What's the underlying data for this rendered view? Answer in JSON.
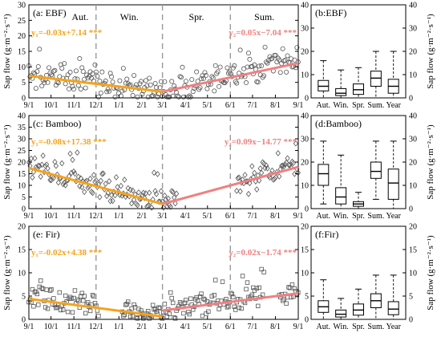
{
  "colors": {
    "fit1": "#F5A31A",
    "fit2": "#F08080",
    "marker": "#555555",
    "divider": "#9a9a9a"
  },
  "seasons": [
    "Aut.",
    "Win.",
    "Spr.",
    "Sum."
  ],
  "chart_data": [
    {
      "type": "scatter",
      "panel": "(a: EBF)",
      "marker": "circle",
      "ylabel": "Sap flow (g·m⁻²·s⁻¹)",
      "ylim": [
        0,
        30
      ],
      "yticks": [
        0,
        5,
        10,
        15,
        20,
        25,
        30
      ],
      "xticklabels": [
        "9/1",
        "10/1",
        "11/1",
        "12/1",
        "1/1",
        "2/1",
        "3/1",
        "4/1",
        "5/1",
        "6/1",
        "7/1",
        "8/1",
        "9/1"
      ],
      "eq1": "y₁=-0.03x+7.14 ***",
      "eq2": "y₂=0.05x−7.04 ***",
      "fit1": {
        "x": [
          0,
          181
        ],
        "y": [
          7.1,
          2.0
        ]
      },
      "fit2": {
        "x": [
          181,
          365
        ],
        "y": [
          2.0,
          11.2
        ]
      },
      "gaps": []
    },
    {
      "type": "bar",
      "panel": "(b:EBF)",
      "subtype": "boxplot",
      "ylabel": "Sap flow (g·m⁻²·s⁻¹)",
      "ylim": [
        0,
        40
      ],
      "yticks": [
        0,
        10,
        20,
        30,
        40
      ],
      "categories": [
        "Aut.",
        "Win.",
        "Spr.",
        "Sum.",
        "Year"
      ],
      "boxes": [
        {
          "min": 0,
          "q1": 3,
          "median": 5,
          "q3": 7.5,
          "max": 16
        },
        {
          "min": 0,
          "q1": 1,
          "median": 2,
          "q3": 4,
          "max": 12
        },
        {
          "min": 0,
          "q1": 1.5,
          "median": 3.5,
          "q3": 6,
          "max": 13
        },
        {
          "min": 0,
          "q1": 5,
          "median": 8.5,
          "q3": 11.5,
          "max": 20
        },
        {
          "min": 0,
          "q1": 2,
          "median": 5,
          "q3": 8,
          "max": 20
        }
      ]
    },
    {
      "type": "scatter",
      "panel": "(c: Bamboo)",
      "marker": "diamond",
      "ylabel": "Sap flow (g·m⁻²·s⁻¹)",
      "ylim": [
        0,
        40
      ],
      "yticks": [
        0,
        5,
        10,
        15,
        20,
        25,
        30,
        35,
        40
      ],
      "xticklabels": [
        "9/1",
        "10/1",
        "11/1",
        "12/1",
        "1/1",
        "2/1",
        "3/1",
        "4/1",
        "5/1",
        "6/1",
        "7/1",
        "8/1",
        "9/1"
      ],
      "eq1": "y₁=-0.08x+17.38 ***",
      "eq2": "y₂=0.09x−14.77 ***",
      "fit1": {
        "x": [
          0,
          181
        ],
        "y": [
          17.4,
          2.0
        ]
      },
      "fit2": {
        "x": [
          181,
          365
        ],
        "y": [
          2.0,
          17.9
        ]
      },
      "gaps": [
        [
          200,
          280
        ]
      ]
    },
    {
      "type": "bar",
      "panel": "(d:Bamboo)",
      "subtype": "boxplot",
      "ylabel": "Sap flow (g·m⁻²·s⁻¹)",
      "ylim": [
        0,
        40
      ],
      "yticks": [
        0,
        10,
        20,
        30,
        40
      ],
      "categories": [
        "Aut.",
        "Win.",
        "Spr.",
        "Sum.",
        "Year"
      ],
      "boxes": [
        {
          "min": 2,
          "q1": 10,
          "median": 15,
          "q3": 19,
          "max": 29
        },
        {
          "min": 0,
          "q1": 2,
          "median": 5,
          "q3": 9,
          "max": 23
        },
        {
          "min": 0,
          "q1": 1,
          "median": 2,
          "q3": 3,
          "max": 7
        },
        {
          "min": 4,
          "q1": 13,
          "median": 16,
          "q3": 20,
          "max": 29
        },
        {
          "min": 0,
          "q1": 4,
          "median": 11,
          "q3": 17,
          "max": 29
        }
      ]
    },
    {
      "type": "scatter",
      "panel": "(e: Fir)",
      "marker": "square",
      "ylabel": "Sap flow (g·m⁻²·s⁻¹)",
      "ylim": [
        0,
        20
      ],
      "yticks": [
        0,
        5,
        10,
        15,
        20
      ],
      "xticklabels": [
        "9/1",
        "10/1",
        "11/1",
        "12/1",
        "1/1",
        "2/1",
        "3/1",
        "4/1",
        "5/1",
        "6/1",
        "7/1",
        "8/1",
        "9/1"
      ],
      "eq1": "y₁=-0.02x+4.38 ***",
      "eq2": "y₂=0.02x−1.74 ***",
      "fit1": {
        "x": [
          0,
          181
        ],
        "y": [
          4.4,
          0.6
        ]
      },
      "fit2": {
        "x": [
          181,
          365
        ],
        "y": [
          1.9,
          5.6
        ]
      },
      "gaps": [
        [
          95,
          125
        ],
        [
          320,
          338
        ]
      ]
    },
    {
      "type": "bar",
      "panel": "(f:Fir)",
      "subtype": "boxplot",
      "ylabel": "Sap flow (g·m⁻²·s⁻¹)",
      "ylim": [
        0,
        20
      ],
      "yticks": [
        0,
        5,
        10,
        15,
        20
      ],
      "categories": [
        "Aut.",
        "Win.",
        "Spr.",
        "Sum.",
        "Year"
      ],
      "boxes": [
        {
          "min": 0,
          "q1": 1.5,
          "median": 2.7,
          "q3": 4,
          "max": 8.5
        },
        {
          "min": 0,
          "q1": 0.5,
          "median": 1.1,
          "q3": 2,
          "max": 4.5
        },
        {
          "min": 0,
          "q1": 0.9,
          "median": 2,
          "q3": 3.3,
          "max": 6.5
        },
        {
          "min": 0,
          "q1": 2.5,
          "median": 4,
          "q3": 5.5,
          "max": 9.5
        },
        {
          "min": 0,
          "q1": 1,
          "median": 2.2,
          "q3": 3.8,
          "max": 9.5
        }
      ]
    }
  ]
}
